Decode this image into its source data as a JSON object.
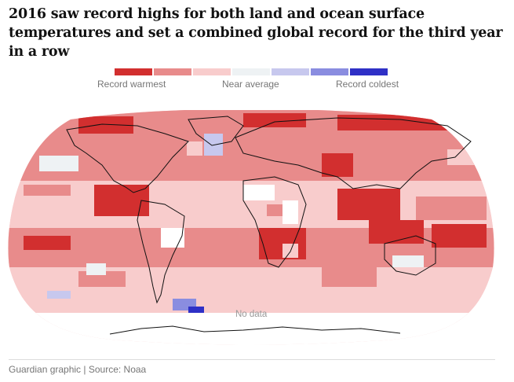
{
  "headline": "2016 saw record highs for both land and ocean surface temperatures and set a combined global record for the third year in a row",
  "legend": {
    "labels": {
      "warmest": "Record warmest",
      "average": "Near average",
      "coldest": "Record coldest"
    },
    "colors": [
      "#d22f2f",
      "#e88b8b",
      "#f8cccc",
      "#eef2f4",
      "#c7c8ee",
      "#8a8de0",
      "#2f30c6"
    ]
  },
  "map": {
    "no_data_label": "No data",
    "ocean_fill": "#f6c3c3",
    "land_outline": "#111111"
  },
  "source": "Guardian graphic | Source: Noaa"
}
